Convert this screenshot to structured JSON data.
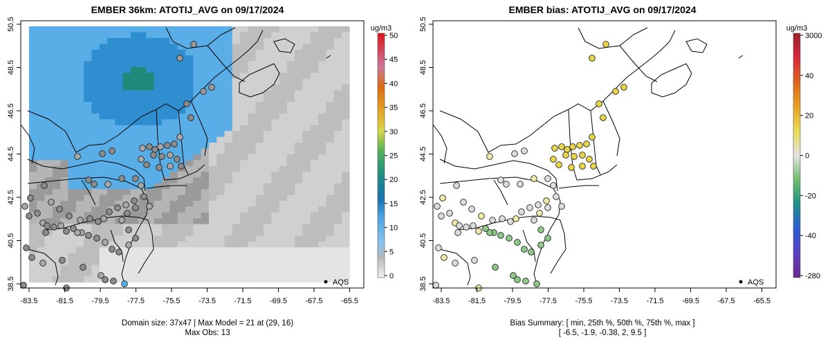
{
  "left": {
    "title": "EMBER 36km: ATOTIJ_AVG on 09/17/2024",
    "unit": "ug/m3",
    "colorbar_ticks": [
      "50",
      "45",
      "40",
      "35",
      "30",
      "25",
      "20",
      "15",
      "10",
      "5",
      "0"
    ],
    "legend_label": "AQS",
    "footer_line1": "Domain size: 37x47 | Max Model = 21 at (29, 16)",
    "footer_line2": "Max Obs: 13"
  },
  "right": {
    "title": "EMBER bias: ATOTIJ_AVG on 09/17/2024",
    "unit": "ug/m3",
    "colorbar_ticks": [
      "3000",
      "40",
      "20",
      "0",
      "-20",
      "-40",
      "-280"
    ],
    "legend_label": "AQS",
    "footer_line1": "Bias Summary: [ min, 25th %, 50th %, 75th %, max ]",
    "footer_line2": "[ -6.5,   -1.9,   -0.38,   2,   9.5 ]"
  },
  "x_ticks": [
    "-83.5",
    "-81.5",
    "-79.5",
    "-77.5",
    "-75.5",
    "-73.5",
    "-71.5",
    "-69.5",
    "-67.5",
    "-65.5"
  ],
  "y_ticks": [
    "38.5",
    "40.5",
    "42.5",
    "44.5",
    "46.5",
    "48.5",
    "50.5"
  ],
  "colors": {
    "model_low": "#c8c8c8",
    "model_mid": "#5aaee8",
    "model_high": "#1f8a7a",
    "bias_pos": "#e8d64a",
    "bias_zero": "#dcdcdc",
    "bias_neg": "#8ec98a"
  }
}
